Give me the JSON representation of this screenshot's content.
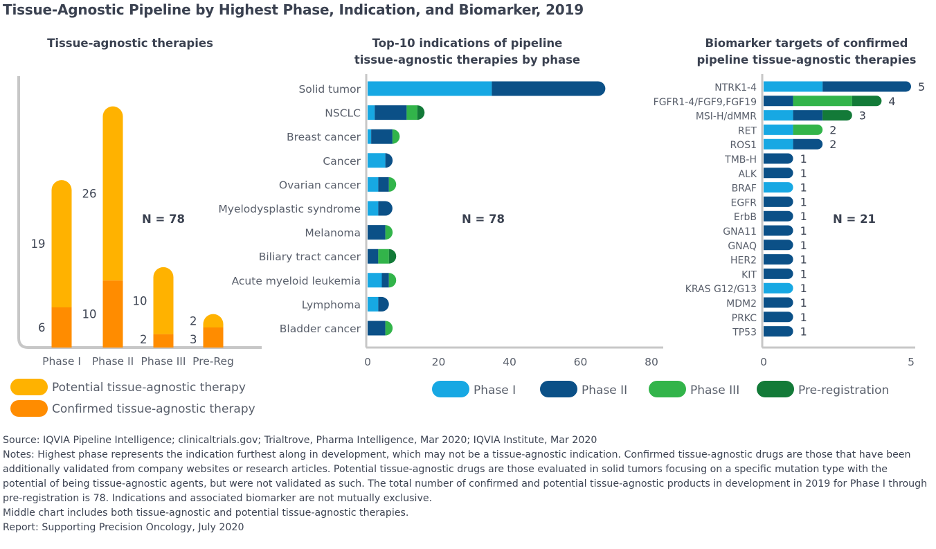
{
  "title": "Tissue-Agnostic Pipeline by Highest Phase, Indication, and Biomarker, 2019",
  "colors": {
    "potential": "#ffb200",
    "confirmed": "#ff8c00",
    "phase1": "#17a8e3",
    "phase2": "#0b5087",
    "phase3": "#32b44a",
    "prereg": "#137a38",
    "axis": "#c7c7c7",
    "text": "#3d4453",
    "grid_label": "#595f6b"
  },
  "chart_data": [
    {
      "type": "bar",
      "title": "Tissue-agnostic therapies",
      "annotation": "N = 78",
      "categories": [
        "Phase I",
        "Phase II",
        "Phase III",
        "Pre-Reg"
      ],
      "series": [
        {
          "name": "Confirmed tissue-agnostic therapy",
          "values": [
            6,
            10,
            2,
            3
          ]
        },
        {
          "name": "Potential tissue-agnostic therapy",
          "values": [
            19,
            26,
            10,
            2
          ]
        }
      ],
      "stacked": true,
      "ylim": [
        0,
        37
      ],
      "legend": [
        "Potential tissue-agnostic therapy",
        "Confirmed tissue-agnostic therapy"
      ],
      "legend_position": "bottom"
    },
    {
      "type": "bar",
      "orientation": "horizontal",
      "title_lines": [
        "Top-10 indications of pipeline",
        "tissue-agnostic therapies by phase"
      ],
      "annotation": "N = 78",
      "categories": [
        "Solid tumor",
        "NSCLC",
        "Breast cancer",
        "Cancer",
        "Ovarian cancer",
        "Myelodysplastic syndrome",
        "Melanoma",
        "Biliary tract cancer",
        "Acute myeloid leukemia",
        "Lymphoma",
        "Bladder cancer"
      ],
      "series": [
        {
          "name": "Phase I",
          "values": [
            35,
            2,
            1,
            5,
            3,
            3,
            0,
            0,
            4,
            3,
            0
          ]
        },
        {
          "name": "Phase II",
          "values": [
            32,
            9,
            6,
            2,
            3,
            4,
            5,
            3,
            2,
            3,
            5
          ]
        },
        {
          "name": "Phase III",
          "values": [
            0,
            3,
            2,
            0,
            1,
            0,
            2,
            3,
            1,
            0,
            1
          ]
        },
        {
          "name": "Pre-registration",
          "values": [
            0,
            1,
            0,
            0,
            0,
            0,
            0,
            1,
            0,
            0,
            0
          ]
        }
      ],
      "stacked": true,
      "xlim": [
        0,
        80
      ],
      "xticks": [
        0,
        20,
        40,
        60,
        80
      ],
      "legend": [
        "Phase I",
        "Phase II",
        "Phase III",
        "Pre-registration"
      ],
      "legend_position": "bottom"
    },
    {
      "type": "bar",
      "orientation": "horizontal",
      "title_lines": [
        "Biomarker targets of confirmed",
        "pipeline tissue-agnostic therapies"
      ],
      "annotation": "N = 21",
      "categories": [
        "NTRK1-4",
        "FGFR1-4/FGF9,FGF19",
        "MSI-H/dMMR",
        "RET",
        "ROS1",
        "TMB-H",
        "ALK",
        "BRAF",
        "EGFR",
        "ErbB",
        "GNA11",
        "GNAQ",
        "HER2",
        "KIT",
        "KRAS G12/G13",
        "MDM2",
        "PRKC",
        "TP53"
      ],
      "totals": [
        "5",
        "4",
        "3",
        "2",
        "2",
        "1",
        "1",
        "1",
        "1",
        "1",
        "1",
        "1",
        "1",
        "1",
        "1",
        "1",
        "1",
        "1"
      ],
      "series": [
        {
          "name": "Phase I",
          "values": [
            2,
            0,
            1,
            1,
            1,
            0,
            0,
            1,
            0,
            0,
            0,
            0,
            0,
            0,
            1,
            0,
            0,
            0
          ]
        },
        {
          "name": "Phase II",
          "values": [
            3,
            1,
            1,
            0,
            1,
            1,
            1,
            0,
            1,
            1,
            1,
            1,
            1,
            1,
            0,
            1,
            1,
            1
          ]
        },
        {
          "name": "Phase III",
          "values": [
            0,
            2,
            0,
            1,
            0,
            0,
            0,
            0,
            0,
            0,
            0,
            0,
            0,
            0,
            0,
            0,
            0,
            0
          ]
        },
        {
          "name": "Pre-registration",
          "values": [
            0,
            1,
            1,
            0,
            0,
            0,
            0,
            0,
            0,
            0,
            0,
            0,
            0,
            0,
            0,
            0,
            0,
            0
          ]
        }
      ],
      "stacked": true,
      "xlim": [
        0,
        5
      ],
      "xticks": [
        0,
        5
      ]
    }
  ],
  "footer": {
    "source": "Source: IQVIA Pipeline Intelligence; clinicaltrials.gov; Trialtrove, Pharma Intelligence, Mar 2020; IQVIA Institute, Mar 2020",
    "notes": "Notes: Highest phase represents the indication furthest along in development, which may not be a tissue-agnostic indication. Confirmed tissue-agnostic drugs are those that have been additionally validated from company websites or research articles. Potential tissue-agnostic drugs are those evaluated in solid tumors focusing on a specific mutation type with the potential of being tissue-agnostic agents, but were not validated as such. The total number of confirmed and potential tissue-agnostic products in development in 2019 for Phase I through pre-registration is 78. Indications and associated biomarker are not mutually exclusive.",
    "notes2": "Middle chart includes both tissue-agnostic and potential tissue-agnostic therapies.",
    "report": "Report: Supporting Precision Oncology, July 2020"
  }
}
